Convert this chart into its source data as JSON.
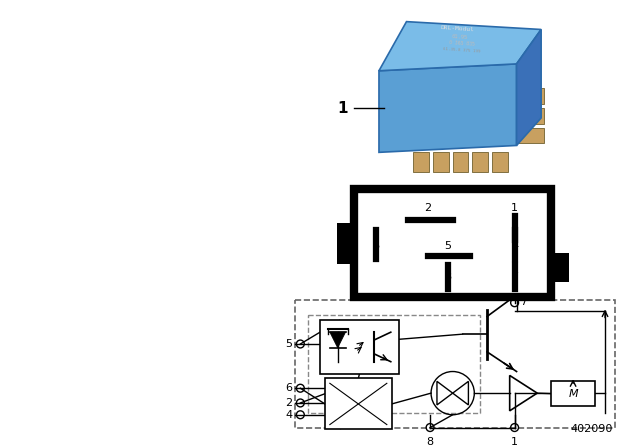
{
  "bg_color": "#ffffff",
  "part_number": "402090",
  "lw": 1.0,
  "lc": "black"
}
